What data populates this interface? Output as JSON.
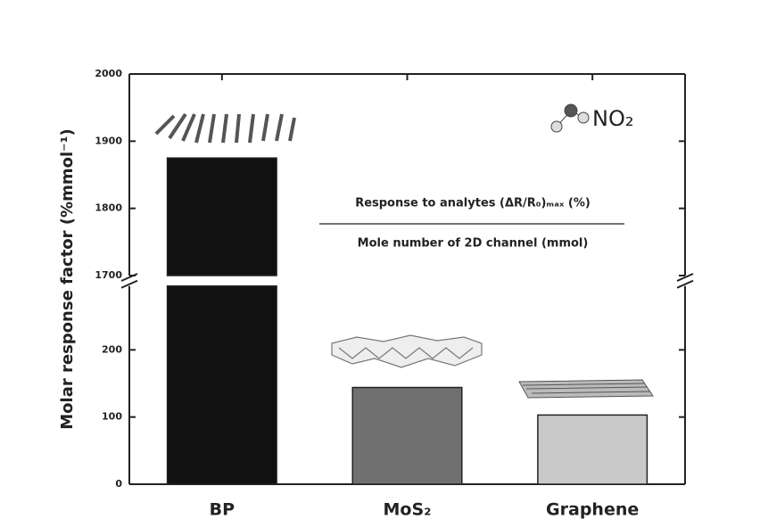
{
  "chart_data": {
    "type": "bar",
    "y_label": "Molar response factor (%mmol⁻¹)",
    "categories": [
      "BP",
      "MoS₂",
      "Graphene"
    ],
    "values": [
      1875,
      144,
      103
    ],
    "colors": [
      "#111111",
      "#707070",
      "#c9c9c9"
    ],
    "ylim": [
      0,
      2000
    ],
    "axis_break": [
      295,
      1700
    ],
    "yticks": [
      0,
      100,
      200,
      1700,
      1800,
      1900,
      2000
    ],
    "annotations": {
      "analyte": "NO₂",
      "numerator": "Response to analytes (ΔR/R₀)ₘₐₓ (%)",
      "denominator": "Mole number of 2D channel (mmol)"
    }
  }
}
